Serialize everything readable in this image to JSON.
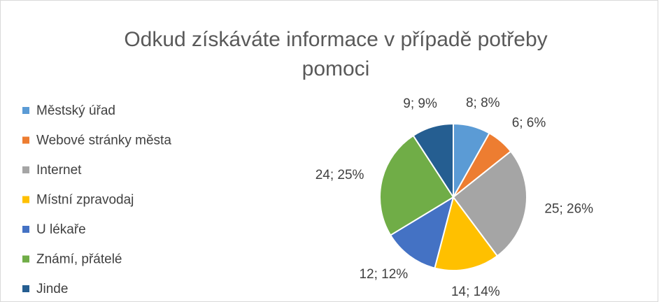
{
  "chart_data": {
    "type": "pie",
    "title": "Odkud získáváte informace v případě potřeby pomoci",
    "categories": [
      "Městský úřad",
      "Webové stránky města",
      "Internet",
      "Místní zpravodaj",
      "U lékaře",
      "Známí, přátelé",
      "Jinde"
    ],
    "values": [
      8,
      6,
      25,
      14,
      12,
      24,
      9
    ],
    "value_labels": [
      "8; 8%",
      "6; 6%",
      "25; 26%",
      "14; 14%",
      "12; 12%",
      "24; 25%",
      "9; 9%"
    ],
    "colors": [
      "#5b9bd5",
      "#ed7d31",
      "#a5a5a5",
      "#ffc000",
      "#4472c4",
      "#70ad47",
      "#255e91"
    ],
    "legend": "left"
  }
}
